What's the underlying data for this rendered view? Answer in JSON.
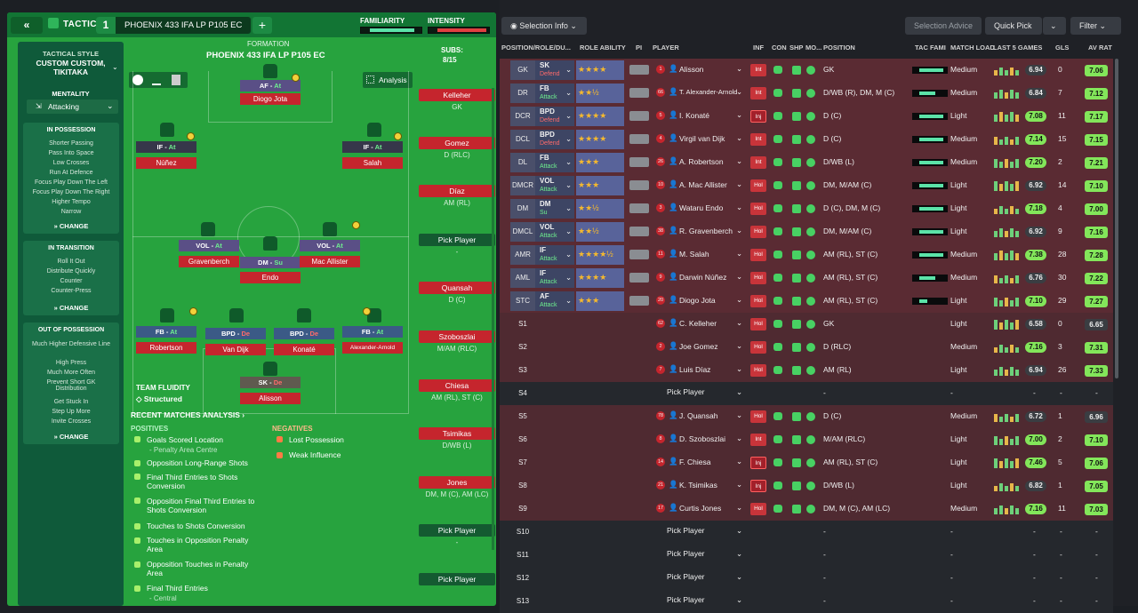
{
  "header": {
    "tactics_label": "TACTICS",
    "tab_number": "1",
    "tab_name": "PHOENIX 433 IFA LP P105 EC",
    "familiarity_label": "FAMILIARITY",
    "intensity_label": "INTENSITY"
  },
  "sidebar": {
    "style_label": "TACTICAL STYLE",
    "style_value": "CUSTOM CUSTOM, TIKITAKA",
    "mentality_label": "MENTALITY",
    "mentality_value": "Attacking",
    "in_possession": {
      "title": "IN POSSESSION",
      "items": [
        "Shorter Passing",
        "Pass Into Space",
        "Low Crosses",
        "Run At Defence",
        "Focus Play Down The Left",
        "Focus Play Down The Right",
        "Higher Tempo",
        "Narrow"
      ]
    },
    "in_transition": {
      "title": "IN TRANSITION",
      "items": [
        "Roll It Out",
        "Distribute Quickly",
        "Counter",
        "Counter-Press"
      ]
    },
    "out_of_possession": {
      "title": "OUT OF POSSESSION",
      "items": [
        "Much Higher Defensive Line",
        "High Press",
        "Much More Often",
        "Prevent Short GK Distribution",
        "Get Stuck In",
        "Step Up More",
        "Invite Crosses"
      ]
    },
    "change_label": "CHANGE"
  },
  "formation": {
    "label": "FORMATION",
    "name": "PHOENIX 433 IFA LP P105 EC",
    "analysis_label": "Analysis",
    "subs_label": "SUBS:",
    "subs_count": "8/15",
    "team_fluidity_label": "TEAM FLUIDITY",
    "team_fluidity_value": "Structured"
  },
  "pitch_players": [
    {
      "role": "AF",
      "duty": "At",
      "name": "Diogo Jota"
    },
    {
      "role": "IF",
      "duty": "At",
      "name": "Núñez"
    },
    {
      "role": "IF",
      "duty": "At",
      "name": "Salah"
    },
    {
      "role": "VOL",
      "duty": "At",
      "name": "Gravenberch"
    },
    {
      "role": "DM",
      "duty": "Su",
      "name": "Endo"
    },
    {
      "role": "VOL",
      "duty": "At",
      "name": "Mac Allister"
    },
    {
      "role": "FB",
      "duty": "At",
      "name": "Robertson"
    },
    {
      "role": "BPD",
      "duty": "De",
      "name": "Van Dijk"
    },
    {
      "role": "BPD",
      "duty": "De",
      "name": "Konaté"
    },
    {
      "role": "FB",
      "duty": "At",
      "name": "Alexander-Arnold"
    },
    {
      "role": "SK",
      "duty": "De",
      "name": "Alisson"
    }
  ],
  "subs": [
    {
      "name": "Kelleher",
      "pos": "GK"
    },
    {
      "name": "Gomez",
      "pos": "D (RLC)"
    },
    {
      "name": "Díaz",
      "pos": "AM (RL)"
    },
    {
      "name": "Pick Player",
      "pos": "-"
    },
    {
      "name": "Quansah",
      "pos": "D (C)"
    },
    {
      "name": "Szoboszlai",
      "pos": "M/AM (RLC)"
    },
    {
      "name": "Chiesa",
      "pos": "AM (RL), ST (C)"
    },
    {
      "name": "Tsimikas",
      "pos": "D/WB (L)"
    },
    {
      "name": "Jones",
      "pos": "DM, M (C), AM (LC)"
    },
    {
      "name": "Pick Player",
      "pos": "-"
    },
    {
      "name": "Pick Player",
      "pos": ""
    }
  ],
  "analysis": {
    "title": "RECENT MATCHES ANALYSIS ›",
    "positives_label": "POSITIVES",
    "negatives_label": "NEGATIVES",
    "positives": [
      {
        "text": "Goals Scored Location",
        "sub": "- Penalty Area Centre"
      },
      {
        "text": "Opposition Long-Range Shots",
        "sub": ""
      },
      {
        "text": "Final Third Entries to Shots Conversion",
        "sub": ""
      },
      {
        "text": "Opposition Final Third Entries to Shots Conversion",
        "sub": ""
      },
      {
        "text": "Touches to Shots Conversion",
        "sub": ""
      },
      {
        "text": "Touches in Opposition Penalty Area",
        "sub": ""
      },
      {
        "text": "Opposition Touches in Penalty Area",
        "sub": ""
      },
      {
        "text": "Final Third Entries",
        "sub": "- Central"
      }
    ],
    "negatives": [
      "Lost Possession",
      "Weak Influence"
    ]
  },
  "right_toolbar": {
    "selection_info": "Selection Info",
    "selection_advice": "Selection Advice",
    "quick_pick": "Quick Pick",
    "filter": "Filter"
  },
  "columns": [
    "POSITION/ROLE/DU...",
    "ROLE ABILITY",
    "PI",
    "PLAYER",
    "INF",
    "CON",
    "SHP",
    "MO...",
    "POSITION",
    "TAC FAMI",
    "MATCH LOAD",
    "LAST 5 GAMES",
    "GLS",
    "AV RAT"
  ],
  "rows": [
    {
      "slot": "GK",
      "role": "SK",
      "duty": "Defend",
      "stars": "★★★★",
      "num": "1",
      "player": "Alisson",
      "inf": "Int",
      "position": "GK",
      "load": "Medium",
      "rating": "6.94",
      "gls": "0",
      "avrat": "7.06",
      "tac": 0.9
    },
    {
      "slot": "DR",
      "role": "FB",
      "duty": "Attack",
      "stars": "★★½",
      "num": "66",
      "player": "T. Alexander-Arnold",
      "inf": "Int",
      "position": "D/WB (R), DM, M (C)",
      "load": "Medium",
      "rating": "6.84",
      "gls": "7",
      "avrat": "7.12",
      "tac": 0.6
    },
    {
      "slot": "DCR",
      "role": "BPD",
      "duty": "Defend",
      "stars": "★★★★",
      "num": "5",
      "player": "I. Konaté",
      "inf": "Inj",
      "position": "D (C)",
      "load": "Light",
      "rating": "7.08",
      "gls": "11",
      "avrat": "7.17",
      "tac": 0.9
    },
    {
      "slot": "DCL",
      "role": "BPD",
      "duty": "Defend",
      "stars": "★★★★",
      "num": "4",
      "player": "Virgil van Dijk",
      "inf": "Int",
      "position": "D (C)",
      "load": "Medium",
      "rating": "7.14",
      "gls": "15",
      "avrat": "7.15",
      "tac": 0.9
    },
    {
      "slot": "DL",
      "role": "FB",
      "duty": "Attack",
      "stars": "★★★",
      "num": "26",
      "player": "A. Robertson",
      "inf": "Int",
      "position": "D/WB (L)",
      "load": "Medium",
      "rating": "7.20",
      "gls": "2",
      "avrat": "7.21",
      "tac": 0.9
    },
    {
      "slot": "DMCR",
      "role": "VOL",
      "duty": "Attack",
      "stars": "★★★",
      "num": "10",
      "player": "A. Mac Allister",
      "inf": "Hol",
      "position": "DM, M/AM (C)",
      "load": "Light",
      "rating": "6.92",
      "gls": "14",
      "avrat": "7.10",
      "tac": 0.9
    },
    {
      "slot": "DM",
      "role": "DM",
      "duty": "Su",
      "stars": "★★½",
      "num": "3",
      "player": "Wataru Endo",
      "inf": "Hol",
      "position": "D (C), DM, M (C)",
      "load": "Light",
      "rating": "7.18",
      "gls": "4",
      "avrat": "7.00",
      "tac": 0.9
    },
    {
      "slot": "DMCL",
      "role": "VOL",
      "duty": "Attack",
      "stars": "★★½",
      "num": "38",
      "player": "R. Gravenberch",
      "inf": "Hol",
      "position": "DM, M/AM (C)",
      "load": "Light",
      "rating": "6.92",
      "gls": "9",
      "avrat": "7.16",
      "tac": 0.9
    },
    {
      "slot": "AMR",
      "role": "IF",
      "duty": "Attack",
      "stars": "★★★★½",
      "num": "11",
      "player": "M. Salah",
      "inf": "Hol",
      "position": "AM (RL), ST (C)",
      "load": "Medium",
      "rating": "7.38",
      "gls": "28",
      "avrat": "7.28",
      "tac": 0.9
    },
    {
      "slot": "AML",
      "role": "IF",
      "duty": "Attack",
      "stars": "★★★★",
      "num": "9",
      "player": "Darwin Núñez",
      "inf": "Hol",
      "position": "AM (RL), ST (C)",
      "load": "Medium",
      "rating": "6.76",
      "gls": "30",
      "avrat": "7.22",
      "tac": 0.6
    },
    {
      "slot": "STC",
      "role": "AF",
      "duty": "Attack",
      "stars": "★★★",
      "num": "20",
      "player": "Diogo Jota",
      "inf": "Hol",
      "position": "AM (RL), ST (C)",
      "load": "Light",
      "rating": "7.10",
      "gls": "29",
      "avrat": "7.27",
      "tac": 0.3
    },
    {
      "slot": "S1",
      "role": "",
      "duty": "",
      "stars": "",
      "num": "62",
      "player": "C. Kelleher",
      "inf": "Hol",
      "position": "GK",
      "load": "Light",
      "rating": "6.58",
      "gls": "0",
      "avrat": "6.65",
      "tac": 0
    },
    {
      "slot": "S2",
      "role": "",
      "duty": "",
      "stars": "",
      "num": "2",
      "player": "Joe Gomez",
      "inf": "Hol",
      "position": "D (RLC)",
      "load": "Medium",
      "rating": "7.16",
      "gls": "3",
      "avrat": "7.31",
      "tac": 0
    },
    {
      "slot": "S3",
      "role": "",
      "duty": "",
      "stars": "",
      "num": "7",
      "player": "Luis Díaz",
      "inf": "Hol",
      "position": "AM (RL)",
      "load": "Light",
      "rating": "6.94",
      "gls": "26",
      "avrat": "7.33",
      "tac": 0
    },
    {
      "slot": "S4",
      "role": "",
      "duty": "",
      "stars": "",
      "num": "",
      "player": "Pick Player",
      "inf": "",
      "position": "-",
      "load": "-",
      "rating": "-",
      "gls": "-",
      "avrat": "-",
      "tac": 0
    },
    {
      "slot": "S5",
      "role": "",
      "duty": "",
      "stars": "",
      "num": "78",
      "player": "J. Quansah",
      "inf": "Hol",
      "position": "D (C)",
      "load": "Medium",
      "rating": "6.72",
      "gls": "1",
      "avrat": "6.96",
      "tac": 0
    },
    {
      "slot": "S6",
      "role": "",
      "duty": "",
      "stars": "",
      "num": "8",
      "player": "D. Szoboszlai",
      "inf": "Int",
      "position": "M/AM (RLC)",
      "load": "Light",
      "rating": "7.00",
      "gls": "2",
      "avrat": "7.10",
      "tac": 0
    },
    {
      "slot": "S7",
      "role": "",
      "duty": "",
      "stars": "",
      "num": "14",
      "player": "F. Chiesa",
      "inf": "Inj",
      "position": "AM (RL), ST (C)",
      "load": "Light",
      "rating": "7.46",
      "gls": "5",
      "avrat": "7.06",
      "tac": 0
    },
    {
      "slot": "S8",
      "role": "",
      "duty": "",
      "stars": "",
      "num": "21",
      "player": "K. Tsimikas",
      "inf": "Inj",
      "position": "D/WB (L)",
      "load": "Light",
      "rating": "6.82",
      "gls": "1",
      "avrat": "7.05",
      "tac": 0
    },
    {
      "slot": "S9",
      "role": "",
      "duty": "",
      "stars": "",
      "num": "17",
      "player": "Curtis Jones",
      "inf": "Hol",
      "position": "DM, M (C), AM (LC)",
      "load": "Medium",
      "rating": "7.16",
      "gls": "11",
      "avrat": "7.03",
      "tac": 0
    },
    {
      "slot": "S10",
      "role": "",
      "duty": "",
      "stars": "",
      "num": "",
      "player": "Pick Player",
      "inf": "",
      "position": "-",
      "load": "-",
      "rating": "-",
      "gls": "-",
      "avrat": "-",
      "tac": 0
    },
    {
      "slot": "S11",
      "role": "",
      "duty": "",
      "stars": "",
      "num": "",
      "player": "Pick Player",
      "inf": "",
      "position": "-",
      "load": "-",
      "rating": "-",
      "gls": "-",
      "avrat": "-",
      "tac": 0
    },
    {
      "slot": "S12",
      "role": "",
      "duty": "",
      "stars": "",
      "num": "",
      "player": "Pick Player",
      "inf": "",
      "position": "-",
      "load": "-",
      "rating": "-",
      "gls": "-",
      "avrat": "-",
      "tac": 0
    },
    {
      "slot": "S13",
      "role": "",
      "duty": "",
      "stars": "",
      "num": "",
      "player": "Pick Player",
      "inf": "",
      "position": "-",
      "load": "-",
      "rating": "-",
      "gls": "-",
      "avrat": "-",
      "tac": 0
    }
  ],
  "colors": {
    "pitch": "#27a33e",
    "accent_green": "#48d163",
    "red": "#c5252d",
    "row_red": "#5a2b33",
    "rating_green": "#83e65a"
  }
}
